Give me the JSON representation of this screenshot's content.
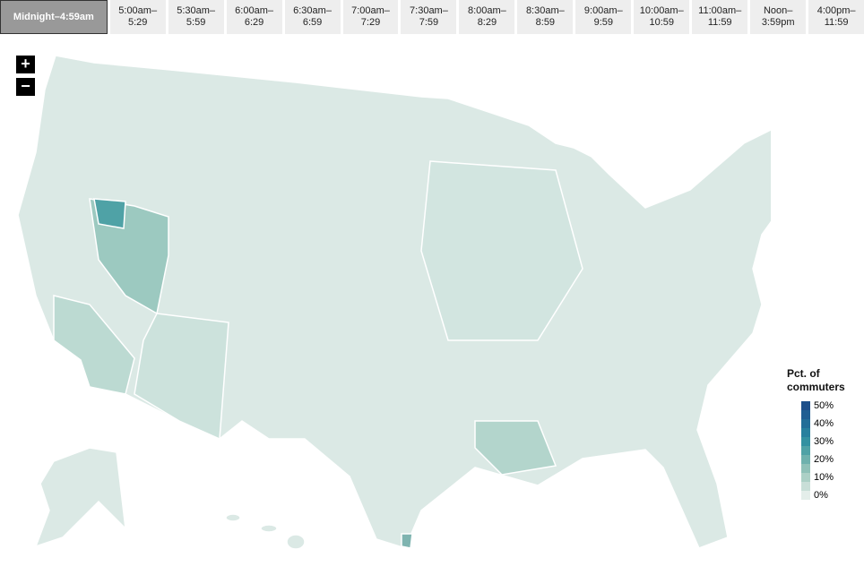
{
  "tabs": [
    {
      "label": [
        "Midnight–4:59am"
      ],
      "selected": true
    },
    {
      "label": [
        "5:00am–",
        "5:29"
      ]
    },
    {
      "label": [
        "5:30am–",
        "5:59"
      ]
    },
    {
      "label": [
        "6:00am–",
        "6:29"
      ]
    },
    {
      "label": [
        "6:30am–",
        "6:59"
      ]
    },
    {
      "label": [
        "7:00am–",
        "7:29"
      ]
    },
    {
      "label": [
        "7:30am–",
        "7:59"
      ]
    },
    {
      "label": [
        "8:00am–",
        "8:29"
      ]
    },
    {
      "label": [
        "8:30am–",
        "8:59"
      ]
    },
    {
      "label": [
        "9:00am–",
        "9:59"
      ]
    },
    {
      "label": [
        "10:00am–",
        "10:59"
      ]
    },
    {
      "label": [
        "11:00am–",
        "11:59"
      ]
    },
    {
      "label": [
        "Noon–3:59pm"
      ]
    },
    {
      "label": [
        "4:00pm–11:59"
      ]
    }
  ],
  "zoom": [
    "+",
    "−"
  ],
  "legend": {
    "title": "Pct. of commuters",
    "labels": [
      "50%",
      "40%",
      "30%",
      "20%",
      "10%",
      "0%"
    ],
    "colors": [
      "#1d4f8a",
      "#1f5f92",
      "#226e98",
      "#27809e",
      "#3391a1",
      "#4fa2a6",
      "#6eb1ad",
      "#8fc1b8",
      "#acd0c6",
      "#c8ded7",
      "#e4eeea"
    ]
  }
}
